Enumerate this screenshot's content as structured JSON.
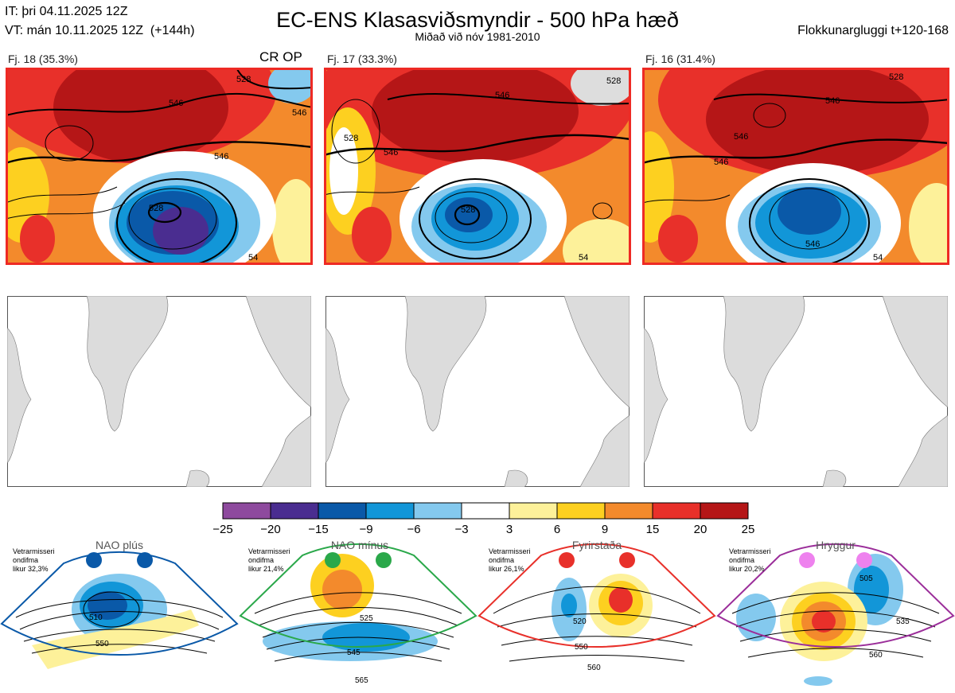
{
  "header": {
    "init_time": "IT: þri 04.11.2025 12Z",
    "valid_time": "VT: mán 10.11.2025 12Z  (+144h)",
    "title": "EC-ENS Klasasviðsmyndir - 500 hPa hæð",
    "subtitle": "Miðað við nóv 1981-2010",
    "window": "Flokkunargluggi t+120-168"
  },
  "clusters": [
    {
      "label": "Fj. 18 (35.3%)",
      "border_color": "#ee2a24",
      "contours": [
        "528",
        "546",
        "546",
        "546",
        "528",
        "54"
      ]
    },
    {
      "label": "Fj. 17 (33.3%)",
      "border_color": "#ee2a24",
      "contours": [
        "528",
        "546",
        "546",
        "528",
        "528",
        "54"
      ]
    },
    {
      "label": "Fj. 16 (31.4%)",
      "border_color": "#ee2a24",
      "contours": [
        "528",
        "546",
        "546",
        "546",
        "546",
        "54"
      ]
    }
  ],
  "op_marker": "CR OP",
  "colorbar": {
    "colors": [
      "#8e4a9e",
      "#4a2d90",
      "#0a59a8",
      "#1296d8",
      "#84c9ee",
      "#ffffff",
      "#fdf19a",
      "#fdd020",
      "#f38a2c",
      "#e8302a",
      "#b51617"
    ],
    "ticks": [
      "−25",
      "−20",
      "−15",
      "−9",
      "−6",
      "−3",
      "3",
      "6",
      "9",
      "15",
      "20",
      "25"
    ]
  },
  "regimes": [
    {
      "title": "NAO plús",
      "text": [
        "Vetrarmisseri",
        "ondifma",
        "likur 32,3%"
      ],
      "color": "#0a59a8",
      "contours": [
        "510",
        "550"
      ]
    },
    {
      "title": "NAO mínus",
      "text": [
        "Vetrarmisseri",
        "ondifma",
        "likur 21,4%"
      ],
      "color": "#2aa84a",
      "contours": [
        "525",
        "545",
        "565"
      ]
    },
    {
      "title": "Fyrirstaða",
      "text": [
        "Vetrarmisseri",
        "ondifma",
        "likur 26,1%"
      ],
      "color": "#e8302a",
      "contours": [
        "520",
        "550",
        "560"
      ]
    },
    {
      "title": "Hryggur",
      "text": [
        "Vetrarmisseri",
        "ondifma",
        "likur 20,2%"
      ],
      "color": "#9b2e9a",
      "contours": [
        "505",
        "535",
        "560"
      ]
    }
  ]
}
